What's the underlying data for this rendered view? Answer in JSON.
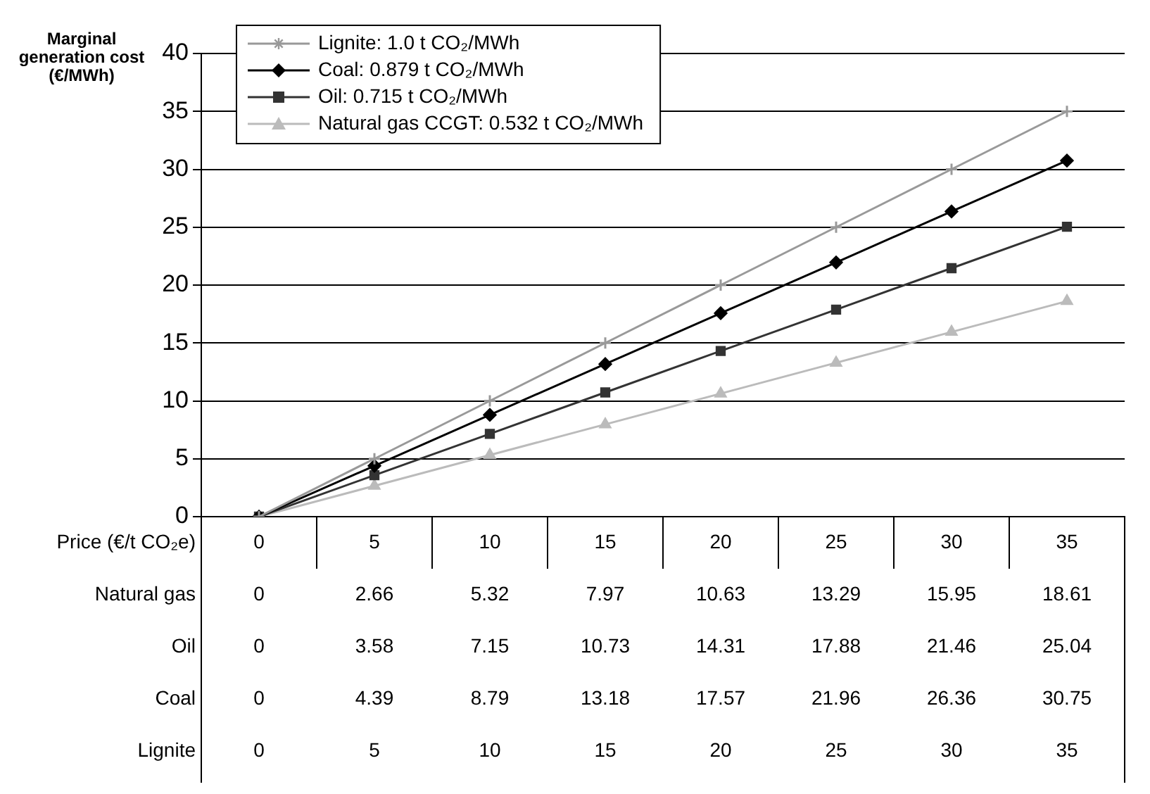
{
  "chart_data": {
    "type": "line",
    "ylabel": "Marginal generation cost (€/MWh)",
    "xlabel": "Price (€/t CO₂e)",
    "categories": [
      "0",
      "5",
      "10",
      "15",
      "20",
      "25",
      "30",
      "35"
    ],
    "series": [
      {
        "name": "Lignite: 1.0 t CO₂/MWh",
        "color": "#999999",
        "marker": "cross",
        "values": [
          0,
          5,
          10,
          15,
          20,
          25,
          30,
          35
        ]
      },
      {
        "name": "Coal: 0.879 t CO₂/MWh",
        "color": "#000000",
        "marker": "diamond",
        "values": [
          0,
          4.39,
          8.79,
          13.18,
          17.57,
          21.96,
          26.36,
          30.75
        ]
      },
      {
        "name": "Oil: 0.715 t CO₂/MWh",
        "color": "#333333",
        "marker": "square",
        "values": [
          0,
          3.58,
          7.15,
          10.73,
          14.31,
          17.88,
          21.46,
          25.04
        ]
      },
      {
        "name": "Natural gas CCGT: 0.532 t CO₂/MWh",
        "color": "#bbbbbb",
        "marker": "triangle",
        "values": [
          0,
          2.66,
          5.32,
          7.97,
          10.63,
          13.29,
          15.95,
          18.61
        ]
      }
    ],
    "annotations": [
      "Natural gas",
      "Oil",
      "Coal",
      "Lignite"
    ],
    "ylim": [
      0,
      40
    ],
    "yticks": [
      0,
      5,
      10,
      15,
      20,
      25,
      30,
      35,
      40
    ],
    "grid": "y",
    "legend": "top left",
    "data_labels": true,
    "line_style": "solid"
  }
}
